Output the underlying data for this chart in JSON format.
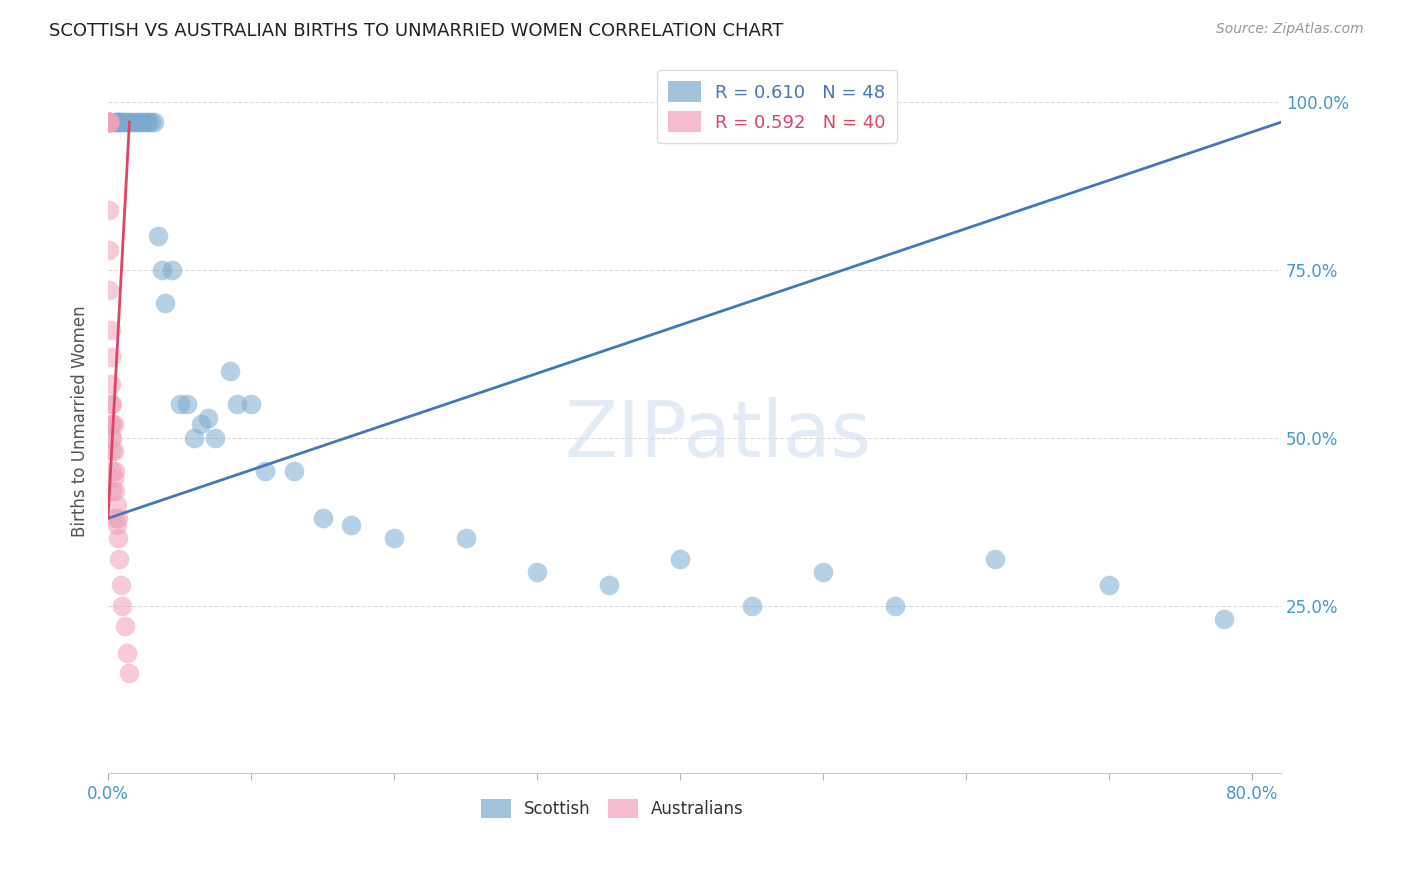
{
  "title": "SCOTTISH VS AUSTRALIAN BIRTHS TO UNMARRIED WOMEN CORRELATION CHART",
  "source": "Source: ZipAtlas.com",
  "ylabel": "Births to Unmarried Women",
  "watermark": "ZIPatlas",
  "blue_color": "#7aaad0",
  "pink_color": "#f0a0b8",
  "blue_line_color": "#4477bb",
  "pink_line_color": "#dd4466",
  "title_color": "#222222",
  "axis_label_color": "#555555",
  "tick_label_color": "#4499cc",
  "grid_color": "#cccccc",
  "background_color": "#ffffff",
  "scottish_x": [
    0.005,
    0.005,
    0.007,
    0.007,
    0.008,
    0.009,
    0.01,
    0.012,
    0.013,
    0.015,
    0.016,
    0.018,
    0.02,
    0.022,
    0.023,
    0.025,
    0.027,
    0.028,
    0.03,
    0.032,
    0.035,
    0.038,
    0.04,
    0.045,
    0.05,
    0.055,
    0.06,
    0.065,
    0.07,
    0.075,
    0.085,
    0.09,
    0.1,
    0.11,
    0.13,
    0.15,
    0.17,
    0.2,
    0.25,
    0.3,
    0.35,
    0.4,
    0.45,
    0.5,
    0.55,
    0.62,
    0.7,
    0.78
  ],
  "scottish_y": [
    0.97,
    0.97,
    0.97,
    0.97,
    0.97,
    0.97,
    0.97,
    0.97,
    0.97,
    0.97,
    0.97,
    0.97,
    0.97,
    0.97,
    0.97,
    0.97,
    0.97,
    0.97,
    0.97,
    0.97,
    0.8,
    0.75,
    0.7,
    0.75,
    0.55,
    0.55,
    0.5,
    0.52,
    0.53,
    0.5,
    0.6,
    0.55,
    0.55,
    0.45,
    0.45,
    0.38,
    0.37,
    0.35,
    0.35,
    0.3,
    0.28,
    0.32,
    0.25,
    0.3,
    0.25,
    0.32,
    0.28,
    0.23
  ],
  "australian_x": [
    0.001,
    0.001,
    0.001,
    0.001,
    0.001,
    0.001,
    0.001,
    0.001,
    0.001,
    0.001,
    0.001,
    0.001,
    0.002,
    0.002,
    0.002,
    0.002,
    0.002,
    0.002,
    0.003,
    0.003,
    0.003,
    0.003,
    0.003,
    0.003,
    0.004,
    0.004,
    0.004,
    0.005,
    0.005,
    0.005,
    0.006,
    0.006,
    0.007,
    0.007,
    0.008,
    0.009,
    0.01,
    0.012,
    0.013,
    0.015
  ],
  "australian_y": [
    0.97,
    0.97,
    0.97,
    0.97,
    0.97,
    0.97,
    0.97,
    0.97,
    0.97,
    0.84,
    0.78,
    0.72,
    0.66,
    0.62,
    0.58,
    0.55,
    0.52,
    0.5,
    0.55,
    0.52,
    0.5,
    0.48,
    0.45,
    0.42,
    0.52,
    0.48,
    0.44,
    0.45,
    0.42,
    0.38,
    0.4,
    0.37,
    0.38,
    0.35,
    0.32,
    0.28,
    0.25,
    0.22,
    0.18,
    0.15
  ],
  "xlim": [
    0.0,
    0.82
  ],
  "ylim": [
    0.0,
    1.05
  ],
  "xtick_positions": [
    0.0,
    0.8
  ],
  "xtick_labels": [
    "0.0%",
    "80.0%"
  ],
  "xtick_minor_positions": [
    0.1,
    0.2,
    0.3,
    0.4,
    0.5,
    0.6,
    0.7
  ],
  "ytick_positions": [
    0.25,
    0.5,
    0.75,
    1.0
  ],
  "ytick_labels": [
    "25.0%",
    "50.0%",
    "75.0%",
    "100.0%"
  ],
  "blue_line_x": [
    0.0,
    0.82
  ],
  "blue_line_y": [
    0.38,
    0.97
  ],
  "pink_line_x": [
    0.0,
    0.015
  ],
  "pink_line_y": [
    0.38,
    0.97
  ]
}
